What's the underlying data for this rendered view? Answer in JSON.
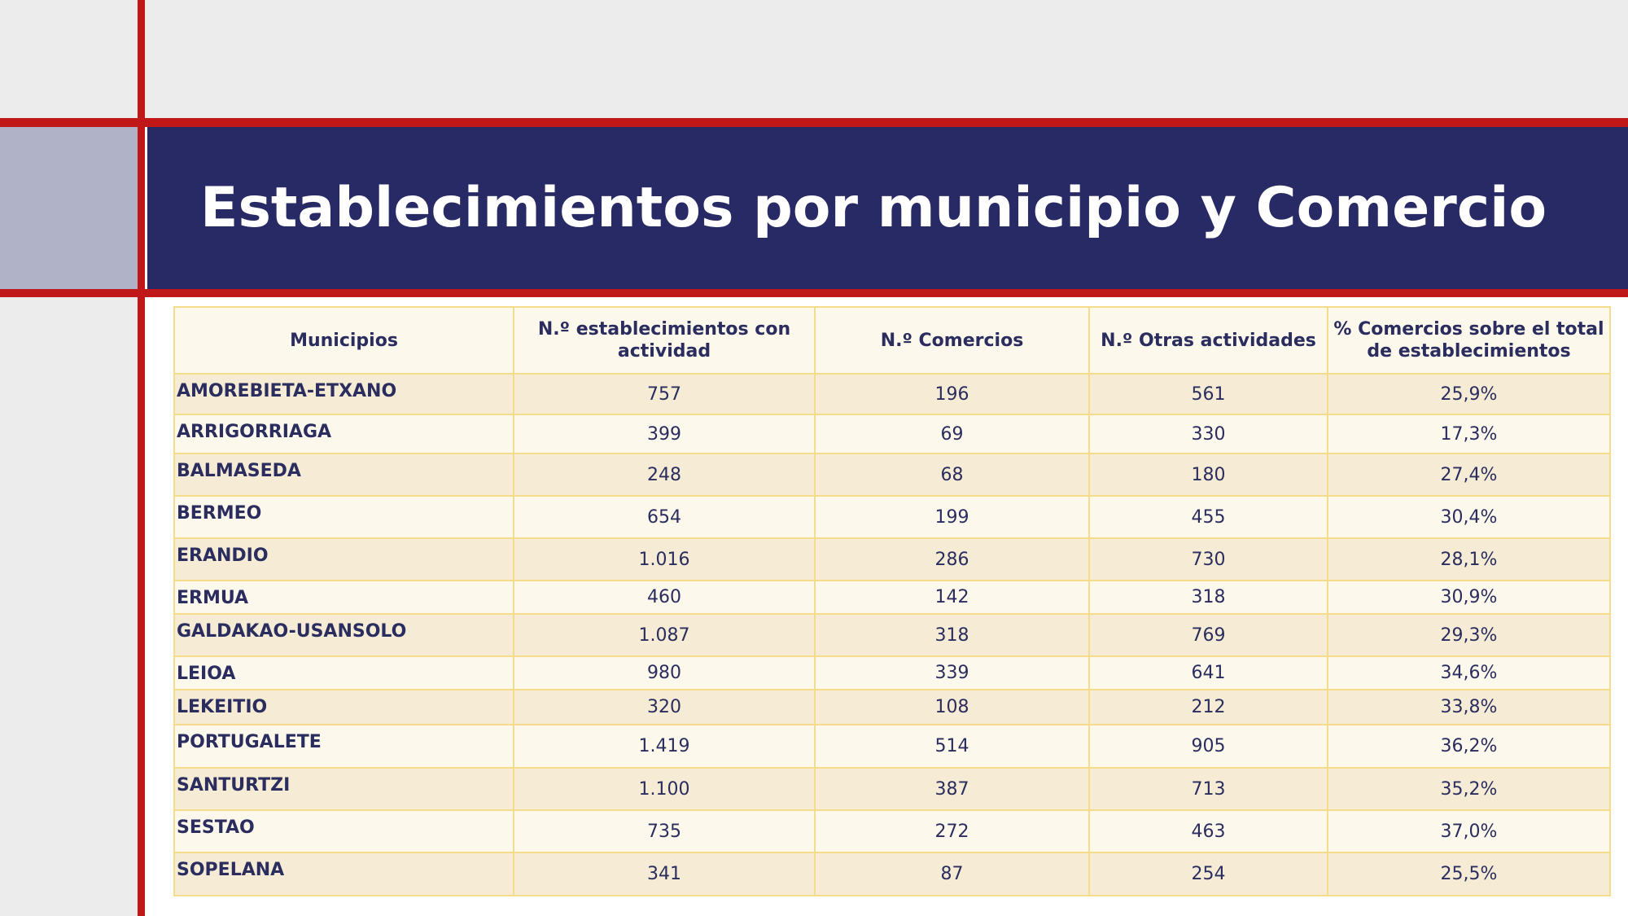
{
  "title": "Establecimientos por municipio y Comercio",
  "table": {
    "header": [
      "Municipios",
      "N.º establecimientos con actividad",
      "N.º Comercios",
      "N.º Otras actividades",
      "% Comercios sobre el total de establecimientos"
    ],
    "rows": [
      [
        "AMOREBIETA-ETXANO",
        "757",
        "196",
        "561",
        "25,9%"
      ],
      [
        "ARRIGORRIAGA",
        "399",
        "69",
        "330",
        "17,3%"
      ],
      [
        "BALMASEDA",
        "248",
        "68",
        "180",
        "27,4%"
      ],
      [
        "BERMEO",
        "654",
        "199",
        "455",
        "30,4%"
      ],
      [
        "ERANDIO",
        "1.016",
        "286",
        "730",
        "28,1%"
      ],
      [
        "ERMUA",
        "460",
        "142",
        "318",
        "30,9%"
      ],
      [
        "GALDAKAO-USANSOLO",
        "1.087",
        "318",
        "769",
        "29,3%"
      ],
      [
        "LEIOA",
        "980",
        "339",
        "641",
        "34,6%"
      ],
      [
        "LEKEITIO",
        "320",
        "108",
        "212",
        "33,8%"
      ],
      [
        "PORTUGALETE",
        "1.419",
        "514",
        "905",
        "36,2%"
      ],
      [
        "SANTURTZI",
        "1.100",
        "387",
        "713",
        "35,2%"
      ],
      [
        "SESTAO",
        "735",
        "272",
        "463",
        "37,0%"
      ],
      [
        "SOPELANA",
        "341",
        "87",
        "254",
        "25,5%"
      ]
    ]
  }
}
